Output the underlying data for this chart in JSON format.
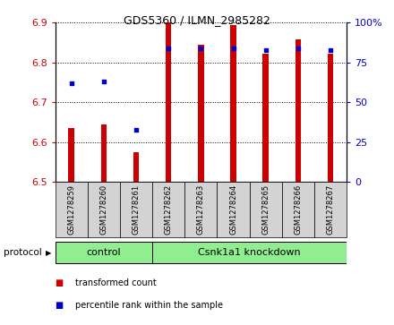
{
  "title": "GDS5360 / ILMN_2985282",
  "samples": [
    "GSM1278259",
    "GSM1278260",
    "GSM1278261",
    "GSM1278262",
    "GSM1278263",
    "GSM1278264",
    "GSM1278265",
    "GSM1278266",
    "GSM1278267"
  ],
  "transformed_counts": [
    6.635,
    6.645,
    6.575,
    6.9,
    6.845,
    6.895,
    6.823,
    6.858,
    6.823
  ],
  "percentile_ranks": [
    62,
    63,
    33,
    84,
    84,
    84,
    83,
    84,
    83
  ],
  "ylim_left": [
    6.5,
    6.9
  ],
  "ylim_right": [
    0,
    100
  ],
  "yticks_left": [
    6.5,
    6.6,
    6.7,
    6.8,
    6.9
  ],
  "yticks_right": [
    0,
    25,
    50,
    75,
    100
  ],
  "bar_color": "#cc0000",
  "dot_color": "#0000cc",
  "bar_width": 0.18,
  "control_label": "control",
  "knockdown_label": "Csnk1a1 knockdown",
  "protocol_label": "protocol",
  "legend_bar_label": "transformed count",
  "legend_dot_label": "percentile rank within the sample",
  "group_color": "#90ee90",
  "tick_label_color_left": "#cc0000",
  "tick_label_color_right": "#0000cc",
  "xlabel_area_color": "#d3d3d3",
  "base_value": 6.5,
  "title_fontsize": 9,
  "tick_fontsize": 8,
  "sample_fontsize": 6,
  "group_fontsize": 8,
  "legend_fontsize": 7
}
